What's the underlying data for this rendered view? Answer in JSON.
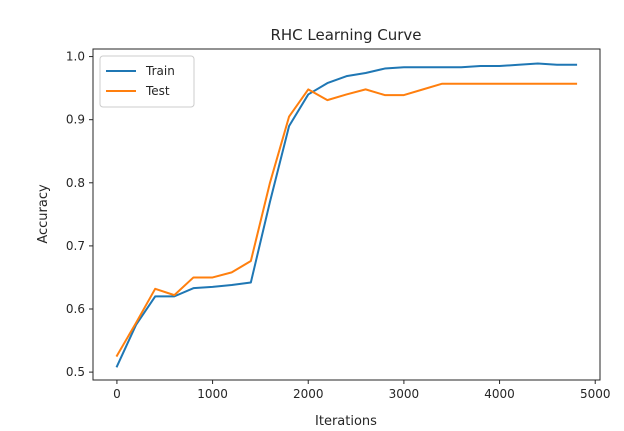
{
  "chart_data": {
    "type": "line",
    "title": "RHC Learning Curve",
    "xlabel": "Iterations",
    "ylabel": "Accuracy",
    "xlim": [
      -250,
      5050
    ],
    "ylim": [
      0.4875,
      1.012
    ],
    "xticks": [
      0,
      1000,
      2000,
      3000,
      4000,
      5000
    ],
    "yticks": [
      0.5,
      0.6,
      0.7,
      0.8,
      0.9,
      1.0
    ],
    "ytick_labels": [
      "0.5",
      "0.6",
      "0.7",
      "0.8",
      "0.9",
      "1.0"
    ],
    "legend_position": "upper-left",
    "grid": false,
    "x": [
      0,
      200,
      400,
      600,
      800,
      1000,
      1200,
      1400,
      1600,
      1800,
      2000,
      2200,
      2400,
      2600,
      2800,
      3000,
      3200,
      3400,
      3600,
      3800,
      4000,
      4200,
      4400,
      4600,
      4800
    ],
    "series": [
      {
        "name": "Train",
        "color": "#1f77b4",
        "values": [
          0.509,
          0.575,
          0.62,
          0.62,
          0.633,
          0.635,
          0.638,
          0.642,
          0.77,
          0.89,
          0.94,
          0.958,
          0.969,
          0.974,
          0.981,
          0.983,
          0.983,
          0.983,
          0.983,
          0.985,
          0.985,
          0.987,
          0.989,
          0.987,
          0.987
        ]
      },
      {
        "name": "Test",
        "color": "#ff7f0e",
        "values": [
          0.526,
          0.578,
          0.632,
          0.622,
          0.65,
          0.65,
          0.658,
          0.676,
          0.8,
          0.905,
          0.948,
          0.931,
          0.94,
          0.948,
          0.939,
          0.939,
          0.948,
          0.957,
          0.957,
          0.957,
          0.957,
          0.957,
          0.957,
          0.957,
          0.957
        ]
      }
    ]
  }
}
